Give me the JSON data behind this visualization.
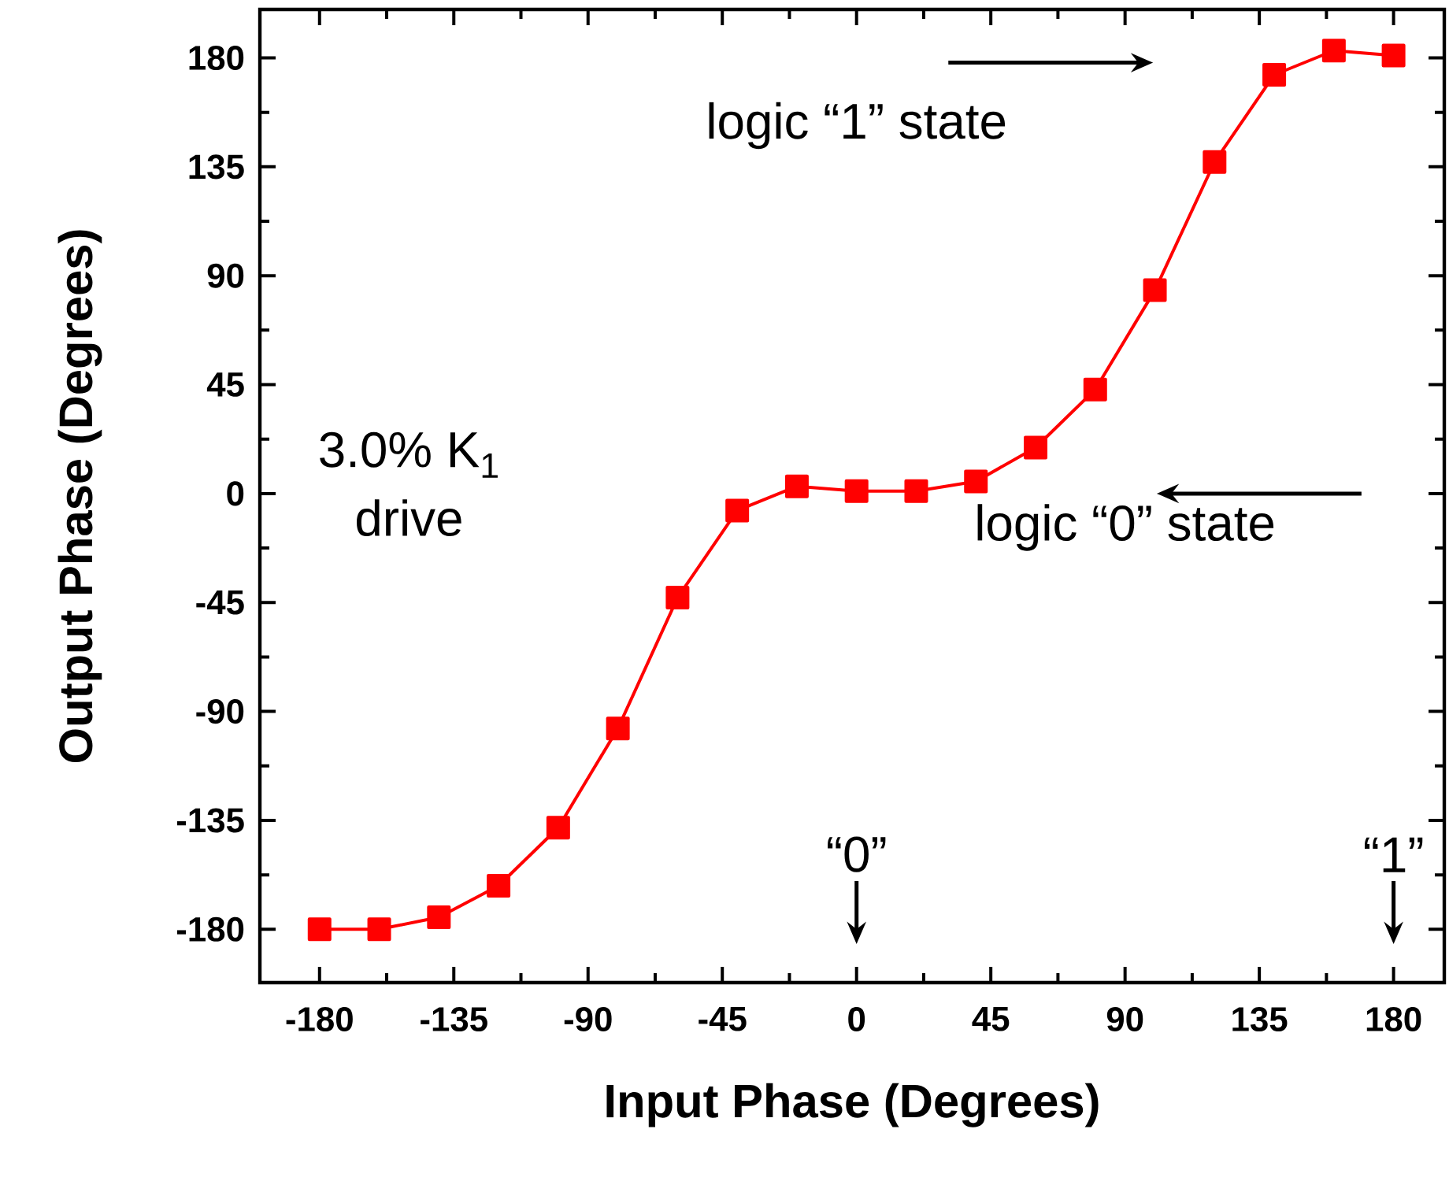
{
  "chart_data": {
    "type": "line",
    "xlabel": "Input Phase (Degrees)",
    "ylabel": "Output Phase (Degrees)",
    "x": [
      -180,
      -160,
      -140,
      -120,
      -100,
      -80,
      -60,
      -40,
      -20,
      0,
      20,
      40,
      60,
      80,
      100,
      120,
      140,
      160,
      180
    ],
    "series": [
      {
        "color": "#ff0000",
        "values": [
          -180,
          -180,
          -175,
          -162,
          -138,
          -97,
          -43,
          -7,
          3,
          1,
          1,
          5,
          19,
          43,
          84,
          137,
          173,
          183,
          181
        ]
      }
    ],
    "xlim": [
      -200,
      197
    ],
    "ylim": [
      -202,
      200
    ],
    "xticks": [
      -180,
      -135,
      -90,
      -45,
      0,
      45,
      90,
      135,
      180
    ],
    "yticks": [
      -180,
      -135,
      -90,
      -45,
      0,
      45,
      90,
      135,
      180
    ],
    "marker": "square",
    "line_style": "solid",
    "grid": false,
    "annotations": [
      "3.0% K$_{1}$",
      "drive",
      "logic “1” state",
      "logic “0” state",
      "“0”",
      "“1”"
    ]
  }
}
